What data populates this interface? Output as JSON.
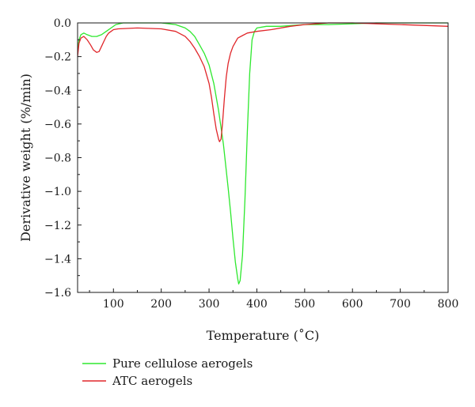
{
  "chart_data": {
    "type": "line",
    "xlabel": "Temperature (˚C)",
    "ylabel": "Derivative weight (%/min)",
    "xlim": [
      25,
      800
    ],
    "ylim": [
      -1.6,
      0.0
    ],
    "x_ticks": [
      100,
      200,
      300,
      400,
      500,
      600,
      700,
      800
    ],
    "y_ticks": [
      0.0,
      -0.2,
      -0.4,
      -0.6,
      -0.8,
      -1.0,
      -1.2,
      -1.4,
      -1.6
    ],
    "x_tick_labels": [
      "100",
      "200",
      "300",
      "400",
      "500",
      "600",
      "700",
      "800"
    ],
    "y_tick_labels": [
      "0.0",
      "−0.2",
      "−0.4",
      "−0.6",
      "−0.8",
      "−1.0",
      "−1.2",
      "−1.4",
      "−1.6"
    ],
    "grid": false,
    "legend_position": "bottom-left, below plot",
    "series": [
      {
        "name": "Pure cellulose aerogels",
        "color": "#2ee82e",
        "x": [
          25,
          28,
          32,
          38,
          45,
          55,
          65,
          75,
          85,
          95,
          105,
          120,
          150,
          200,
          230,
          250,
          260,
          270,
          280,
          290,
          300,
          310,
          320,
          330,
          340,
          345,
          350,
          355,
          360,
          362,
          365,
          370,
          375,
          380,
          385,
          390,
          395,
          400,
          420,
          450,
          500,
          550,
          600,
          650,
          700,
          750,
          800
        ],
        "y": [
          -0.17,
          -0.1,
          -0.07,
          -0.06,
          -0.07,
          -0.08,
          -0.08,
          -0.07,
          -0.05,
          -0.03,
          -0.01,
          0.0,
          0.0,
          0.0,
          -0.01,
          -0.03,
          -0.05,
          -0.08,
          -0.13,
          -0.18,
          -0.25,
          -0.36,
          -0.52,
          -0.72,
          -0.98,
          -1.12,
          -1.28,
          -1.42,
          -1.52,
          -1.55,
          -1.53,
          -1.38,
          -1.05,
          -0.65,
          -0.3,
          -0.1,
          -0.05,
          -0.03,
          -0.02,
          -0.02,
          -0.01,
          -0.01,
          -0.005,
          0.0,
          0.0,
          0.0,
          0.0
        ]
      },
      {
        "name": "ATC aerogels",
        "color": "#e0262a",
        "x": [
          25,
          28,
          32,
          38,
          45,
          52,
          58,
          65,
          70,
          75,
          80,
          85,
          90,
          95,
          100,
          110,
          150,
          200,
          230,
          250,
          260,
          270,
          280,
          290,
          300,
          305,
          310,
          315,
          320,
          322,
          325,
          328,
          332,
          336,
          340,
          345,
          350,
          360,
          370,
          380,
          400,
          430,
          470,
          500,
          550,
          600,
          650,
          700,
          750,
          800
        ],
        "y": [
          -0.2,
          -0.12,
          -0.09,
          -0.08,
          -0.1,
          -0.13,
          -0.16,
          -0.175,
          -0.17,
          -0.14,
          -0.11,
          -0.08,
          -0.06,
          -0.05,
          -0.04,
          -0.035,
          -0.03,
          -0.035,
          -0.05,
          -0.08,
          -0.11,
          -0.15,
          -0.2,
          -0.26,
          -0.36,
          -0.44,
          -0.54,
          -0.63,
          -0.69,
          -0.705,
          -0.69,
          -0.6,
          -0.45,
          -0.32,
          -0.24,
          -0.18,
          -0.14,
          -0.09,
          -0.075,
          -0.06,
          -0.05,
          -0.04,
          -0.02,
          -0.01,
          0.0,
          0.0,
          -0.005,
          -0.01,
          -0.015,
          -0.02
        ]
      }
    ]
  }
}
